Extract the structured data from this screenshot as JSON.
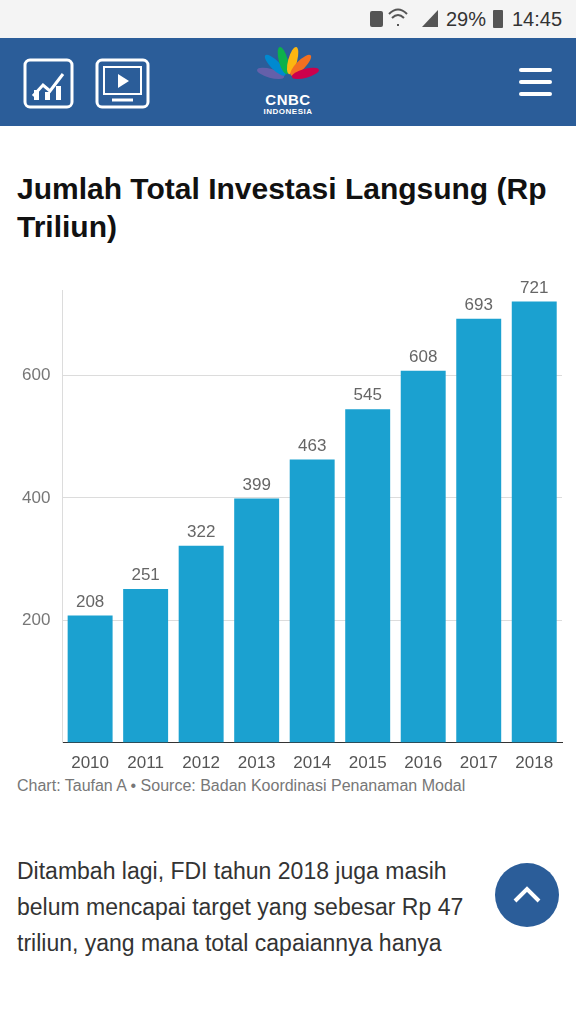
{
  "chart_data": {
    "type": "bar",
    "title": "Jumlah Total Investasi Langsung (Rp Triliun)",
    "categories": [
      "2010",
      "2011",
      "2012",
      "2013",
      "2014",
      "2015",
      "2016",
      "2017",
      "2018"
    ],
    "values": [
      208,
      251,
      322,
      399,
      463,
      545,
      608,
      693,
      721
    ],
    "color": "#1ba1d0",
    "ylim": [
      0,
      740
    ],
    "yticks": [
      200,
      400,
      600
    ],
    "grid": true,
    "data_labels": true,
    "caption": "Chart: Taufan A • Source: Badan Koordinasi Penanaman Modal"
  },
  "screen": {
    "status_bar": {
      "battery": "29%",
      "time": "14:45"
    },
    "header": {
      "logo": "CNBC",
      "logo_sub": "INDONESIA"
    },
    "paragraph": [
      "Ditambah lagi, FDI tahun 2018 juga masih",
      "belum mencapai target yang sebesar Rp 47",
      "triliun, yang mana total capaiannya hanya"
    ]
  }
}
